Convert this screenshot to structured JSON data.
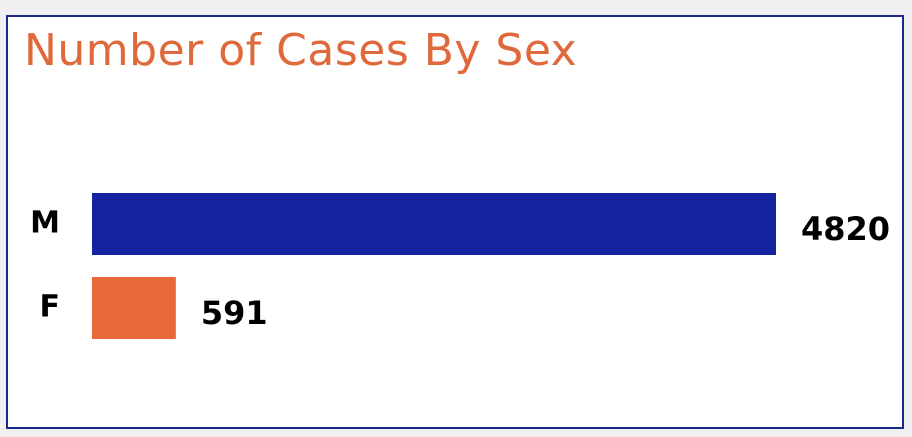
{
  "chart_data": {
    "type": "bar",
    "orientation": "horizontal",
    "title": "Number of Cases By Sex",
    "categories": [
      "M",
      "F"
    ],
    "values": [
      4820,
      591
    ],
    "colors": [
      "#1323a0",
      "#e8693a"
    ],
    "data_labels": [
      "4820",
      "591"
    ],
    "xlim": [
      0,
      4820
    ],
    "grid": false,
    "legend": "none"
  },
  "colors": {
    "title": "#e0693b",
    "border": "#1b2a8a",
    "background": "#ffffff"
  }
}
